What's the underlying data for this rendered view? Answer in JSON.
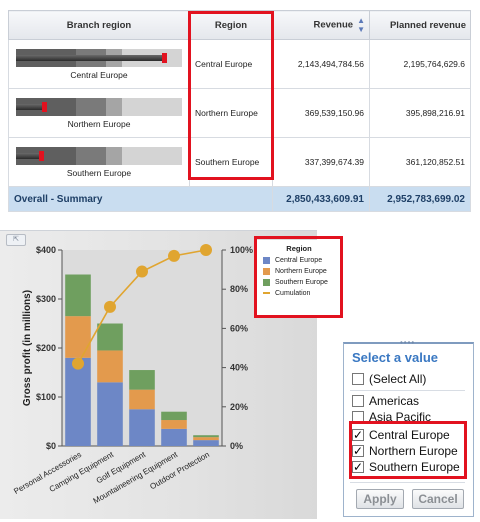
{
  "table": {
    "headers": {
      "branch": "Branch region",
      "region": "Region",
      "revenue": "Revenue",
      "planned": "Planned revenue"
    },
    "rows": [
      {
        "branch_label": "Central Europe",
        "region": "Central Europe",
        "revenue": "2,143,494,784.56",
        "planned": "2,195,764,629.6",
        "bar_fraction": 0.88,
        "marker_fraction": 0.89
      },
      {
        "branch_label": "Northern Europe",
        "region": "Northern Europe",
        "revenue": "369,539,150.96",
        "planned": "395,898,216.91",
        "bar_fraction": 0.17,
        "marker_fraction": 0.17
      },
      {
        "branch_label": "Southern Europe",
        "region": "Southern Europe",
        "revenue": "337,399,674.39",
        "planned": "361,120,852.51",
        "bar_fraction": 0.15,
        "marker_fraction": 0.15
      }
    ],
    "summary": {
      "label": "Overall - Summary",
      "revenue": "2,850,433,609.91",
      "planned": "2,952,783,699.02"
    }
  },
  "chart_data": {
    "type": "bar",
    "stacked": true,
    "categories": [
      "Personal Accessories",
      "Camping Equipment",
      "Golf Equipment",
      "Mountaineering Equipment",
      "Outdoor Protection"
    ],
    "series": [
      {
        "name": "Central Europe",
        "values": [
          180,
          130,
          75,
          35,
          12
        ],
        "color": "#6d87c6"
      },
      {
        "name": "Northern Europe",
        "values": [
          85,
          65,
          40,
          18,
          6
        ],
        "color": "#e39a4d"
      },
      {
        "name": "Southern Europe",
        "values": [
          85,
          55,
          40,
          17,
          4
        ],
        "color": "#6f9f5f"
      }
    ],
    "line_series": {
      "name": "Cumulation",
      "values": [
        42,
        71,
        89,
        97,
        100
      ],
      "color": "#e0a530"
    },
    "ylabel": "Gross profit (in millions)",
    "ylim": [
      0,
      400
    ],
    "yticks": [
      "$0",
      "$100",
      "$200",
      "$300",
      "$400"
    ],
    "y2lim": [
      0,
      100
    ],
    "y2ticks": [
      "0%",
      "20%",
      "40%",
      "60%",
      "80%",
      "100%"
    ],
    "legend_title": "Region",
    "legend_position": "right"
  },
  "filter": {
    "title": "Select a value",
    "items": [
      {
        "label": "(Select All)",
        "checked": false
      },
      {
        "label": "Americas",
        "checked": false
      },
      {
        "label": "Asia Pacific",
        "checked": false
      },
      {
        "label": "Central Europe",
        "checked": true
      },
      {
        "label": "Northern Europe",
        "checked": true
      },
      {
        "label": "Southern Europe",
        "checked": true
      }
    ],
    "apply_label": "Apply",
    "cancel_label": "Cancel"
  }
}
